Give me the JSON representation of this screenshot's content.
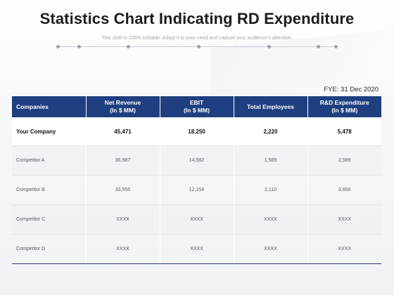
{
  "title": "Statistics Chart Indicating RD Expenditure",
  "subtitle": "This slide is 100% editable. Adapt it to your need and capture your audience's attention.",
  "fye": "FYE: 31 Dec 2020",
  "table": {
    "headers": [
      "Companies",
      "Net Revenue\n(In $ MM)",
      "EBIT\n(In $ MM)",
      "Total Employees",
      "R&D Expenditure\n(In $ MM)"
    ],
    "rows": [
      [
        "Your Company",
        "45,471",
        "18,250",
        "2,220",
        "5,478"
      ],
      [
        "Competitor A",
        "36,987",
        "14,582",
        "1,589",
        "2,589"
      ],
      [
        "Competitor B",
        "33,555",
        "12,154",
        "2,110",
        "3,650"
      ],
      [
        "Competitor C",
        "XXXX",
        "XXXX",
        "XXXX",
        "XXXX"
      ],
      [
        "Competitor D",
        "XXXX",
        "XXXX",
        "XXXX",
        "XXXX"
      ]
    ]
  },
  "colors": {
    "header_bg": "#1f3f80",
    "header_text": "#ffffff"
  }
}
